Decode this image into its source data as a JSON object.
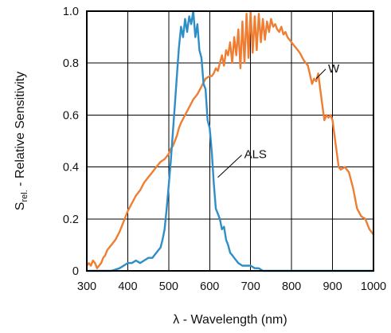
{
  "chart_data": {
    "type": "line",
    "xlabel": "λ - Wavelength (nm)",
    "ylabel_main": "S",
    "ylabel_sub": "rel.",
    "ylabel_rest": " - Relative Sensitivity",
    "xlim": [
      300,
      1000
    ],
    "ylim": [
      0,
      1.0
    ],
    "xticks": [
      300,
      400,
      500,
      600,
      700,
      800,
      900,
      1000
    ],
    "xtick_labels": [
      "300",
      "400",
      "500",
      "600",
      "700",
      "800",
      "900",
      "1000"
    ],
    "yticks": [
      0,
      0.2,
      0.4,
      0.6,
      0.8,
      1.0
    ],
    "ytick_labels": [
      "0",
      "0.2",
      "0.4",
      "0.6",
      "0.8",
      "1.0"
    ],
    "grid": true,
    "series": [
      {
        "name": "W",
        "color": "#ef7d32",
        "label_at": [
          860,
          0.74
        ],
        "x": [
          300,
          305,
          310,
          315,
          320,
          325,
          330,
          335,
          340,
          345,
          350,
          360,
          370,
          380,
          390,
          400,
          410,
          420,
          430,
          440,
          450,
          460,
          470,
          480,
          490,
          500,
          505,
          510,
          515,
          520,
          525,
          530,
          540,
          550,
          560,
          570,
          580,
          590,
          600,
          605,
          610,
          615,
          620,
          625,
          630,
          635,
          640,
          645,
          650,
          655,
          660,
          665,
          670,
          675,
          680,
          685,
          690,
          695,
          700,
          705,
          710,
          715,
          720,
          725,
          730,
          735,
          740,
          745,
          750,
          755,
          760,
          765,
          770,
          775,
          780,
          785,
          790,
          800,
          810,
          820,
          830,
          840,
          850,
          855,
          860,
          865,
          870,
          875,
          880,
          885,
          890,
          895,
          900,
          905,
          910,
          915,
          920,
          930,
          940,
          950,
          960,
          970,
          980,
          990,
          1000
        ],
        "values": [
          0.02,
          0.03,
          0.02,
          0.04,
          0.03,
          0.01,
          0.02,
          0.03,
          0.05,
          0.06,
          0.08,
          0.1,
          0.12,
          0.15,
          0.19,
          0.23,
          0.26,
          0.29,
          0.31,
          0.34,
          0.36,
          0.38,
          0.4,
          0.42,
          0.43,
          0.45,
          0.47,
          0.48,
          0.5,
          0.52,
          0.55,
          0.57,
          0.6,
          0.63,
          0.66,
          0.68,
          0.71,
          0.74,
          0.75,
          0.75,
          0.76,
          0.78,
          0.77,
          0.8,
          0.83,
          0.79,
          0.85,
          0.83,
          0.88,
          0.8,
          0.9,
          0.83,
          0.93,
          0.78,
          0.96,
          0.8,
          0.99,
          0.82,
          1.0,
          0.84,
          0.98,
          0.85,
          0.99,
          0.88,
          0.97,
          0.89,
          0.96,
          0.92,
          0.97,
          0.94,
          0.95,
          0.93,
          0.92,
          0.94,
          0.91,
          0.92,
          0.9,
          0.88,
          0.86,
          0.84,
          0.81,
          0.79,
          0.72,
          0.74,
          0.73,
          0.76,
          0.7,
          0.64,
          0.58,
          0.6,
          0.59,
          0.6,
          0.58,
          0.52,
          0.46,
          0.4,
          0.39,
          0.4,
          0.38,
          0.32,
          0.24,
          0.21,
          0.2,
          0.16,
          0.14
        ]
      },
      {
        "name": "ALS",
        "color": "#2d8ec8",
        "label_at": [
          620,
          0.36
        ],
        "x": [
          300,
          320,
          340,
          360,
          380,
          390,
          400,
          410,
          420,
          430,
          440,
          450,
          460,
          465,
          470,
          475,
          480,
          485,
          490,
          495,
          500,
          505,
          510,
          515,
          520,
          525,
          530,
          535,
          540,
          545,
          550,
          555,
          560,
          565,
          570,
          575,
          580,
          585,
          590,
          595,
          600,
          605,
          610,
          615,
          620,
          625,
          630,
          635,
          640,
          645,
          650,
          655,
          660,
          665,
          670,
          680,
          690,
          700,
          710,
          720,
          730,
          740,
          750,
          760,
          780,
          800,
          850,
          900,
          950,
          1000
        ],
        "values": [
          0,
          0,
          0,
          0,
          0.01,
          0.02,
          0.03,
          0.03,
          0.04,
          0.03,
          0.04,
          0.05,
          0.05,
          0.06,
          0.07,
          0.08,
          0.09,
          0.12,
          0.16,
          0.24,
          0.33,
          0.42,
          0.53,
          0.64,
          0.75,
          0.86,
          0.94,
          0.9,
          0.97,
          0.92,
          0.98,
          0.95,
          1.0,
          0.9,
          0.95,
          0.85,
          0.82,
          0.72,
          0.7,
          0.58,
          0.55,
          0.46,
          0.34,
          0.24,
          0.22,
          0.2,
          0.16,
          0.17,
          0.12,
          0.1,
          0.07,
          0.06,
          0.05,
          0.04,
          0.03,
          0.02,
          0.02,
          0.02,
          0.01,
          0.01,
          0,
          0,
          0,
          0,
          0,
          0,
          0,
          0,
          0,
          0
        ]
      }
    ]
  }
}
